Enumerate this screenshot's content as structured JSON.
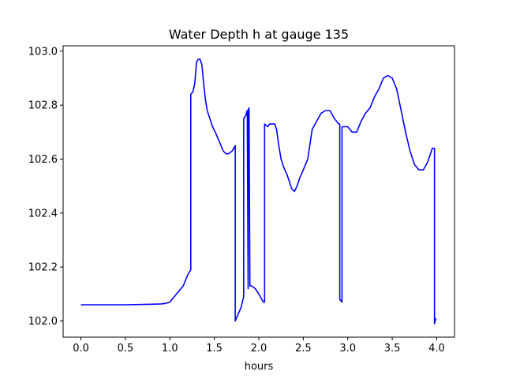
{
  "chart_data": {
    "type": "line",
    "title": "Water Depth h at gauge 135",
    "xlabel": "hours",
    "ylabel": "",
    "xlim": [
      -0.2,
      4.2
    ],
    "ylim": [
      101.94,
      103.02
    ],
    "xticks": [
      0.0,
      0.5,
      1.0,
      1.5,
      2.0,
      2.5,
      3.0,
      3.5,
      4.0
    ],
    "xtick_labels": [
      "0.0",
      "0.5",
      "1.0",
      "1.5",
      "2.0",
      "2.5",
      "3.0",
      "3.5",
      "4.0"
    ],
    "yticks": [
      102.0,
      102.2,
      102.4,
      102.6,
      102.8,
      103.0
    ],
    "ytick_labels": [
      "102.0",
      "102.2",
      "102.4",
      "102.6",
      "102.8",
      "103.0"
    ],
    "grid": false,
    "series": [
      {
        "color": "#0000ff",
        "x": [
          0.0,
          0.5,
          0.8,
          0.9,
          0.95,
          1.0,
          1.05,
          1.1,
          1.15,
          1.2,
          1.235,
          1.235,
          1.26,
          1.28,
          1.3,
          1.32,
          1.34,
          1.36,
          1.38,
          1.4,
          1.42,
          1.45,
          1.48,
          1.51,
          1.55,
          1.6,
          1.63,
          1.66,
          1.7,
          1.735,
          1.735,
          1.8,
          1.83,
          1.83,
          1.85,
          1.87,
          1.88,
          1.88,
          1.89,
          1.9,
          1.9,
          1.92,
          1.96,
          2.0,
          2.05,
          2.065,
          2.065,
          2.1,
          2.12,
          2.15,
          2.18,
          2.2,
          2.22,
          2.25,
          2.28,
          2.32,
          2.37,
          2.4,
          2.43,
          2.46,
          2.5,
          2.55,
          2.6,
          2.65,
          2.7,
          2.75,
          2.8,
          2.85,
          2.9,
          2.91,
          2.91,
          2.935,
          2.935,
          2.97,
          3.0,
          3.05,
          3.1,
          3.15,
          3.2,
          3.25,
          3.3,
          3.35,
          3.4,
          3.45,
          3.5,
          3.55,
          3.6,
          3.65,
          3.7,
          3.75,
          3.8,
          3.85,
          3.9,
          3.95,
          3.975,
          3.975,
          3.99
        ],
        "y": [
          102.06,
          102.06,
          102.062,
          102.063,
          102.065,
          102.07,
          102.09,
          102.11,
          102.13,
          102.17,
          102.19,
          102.84,
          102.85,
          102.88,
          102.96,
          102.97,
          102.97,
          102.95,
          102.88,
          102.82,
          102.78,
          102.75,
          102.72,
          102.7,
          102.67,
          102.63,
          102.62,
          102.62,
          102.63,
          102.65,
          102.0,
          102.05,
          102.09,
          102.75,
          102.76,
          102.78,
          102.12,
          102.78,
          102.79,
          102.13,
          102.13,
          102.13,
          102.12,
          102.1,
          102.07,
          102.07,
          102.73,
          102.72,
          102.73,
          102.73,
          102.73,
          102.71,
          102.66,
          102.6,
          102.57,
          102.54,
          102.49,
          102.48,
          102.5,
          102.53,
          102.56,
          102.6,
          102.71,
          102.74,
          102.77,
          102.78,
          102.78,
          102.75,
          102.73,
          102.73,
          102.08,
          102.07,
          102.72,
          102.72,
          102.72,
          102.7,
          102.7,
          102.74,
          102.77,
          102.79,
          102.83,
          102.86,
          102.9,
          102.91,
          102.9,
          102.86,
          102.78,
          102.7,
          102.63,
          102.58,
          102.56,
          102.56,
          102.59,
          102.64,
          102.64,
          101.99,
          102.01
        ]
      }
    ]
  }
}
